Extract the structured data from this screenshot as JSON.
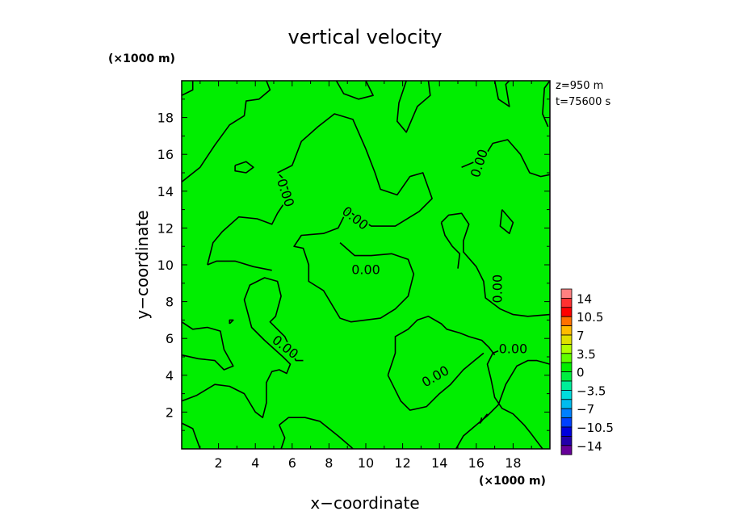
{
  "chart_data": {
    "type": "heatmap",
    "title": "vertical velocity",
    "xlabel": "x−coordinate",
    "ylabel": "y−coordinate",
    "x_unit": "(×1000 m)",
    "y_unit": "(×1000 m)",
    "xlim": [
      0,
      20
    ],
    "ylim": [
      0,
      20
    ],
    "x_ticks": [
      2,
      4,
      6,
      8,
      10,
      12,
      14,
      16,
      18
    ],
    "y_ticks": [
      2,
      4,
      6,
      8,
      10,
      12,
      14,
      16,
      18
    ],
    "x_tick_labels": [
      "2",
      "4",
      "6",
      "8",
      "10",
      "12",
      "14",
      "16",
      "18"
    ],
    "y_tick_labels": [
      "2",
      "4",
      "6",
      "8",
      "10",
      "12",
      "14",
      "16",
      "18"
    ],
    "field_color": "#00ee00",
    "annotations": [
      "z=950 m",
      "t=75600 s"
    ],
    "contour_level": 0.0,
    "contour_labels": [
      {
        "text": "0.00",
        "x": 5.6,
        "y": 13.9,
        "angle": 72
      },
      {
        "text": "0.00",
        "x": 9.4,
        "y": 12.5,
        "angle": 38
      },
      {
        "text": "0.00",
        "x": 10.0,
        "y": 9.7,
        "angle": 0
      },
      {
        "text": "0.00",
        "x": 16.2,
        "y": 15.5,
        "angle": -72
      },
      {
        "text": "0.00",
        "x": 17.2,
        "y": 8.7,
        "angle": -90
      },
      {
        "text": "0.00",
        "x": 18.0,
        "y": 5.4,
        "angle": 0
      },
      {
        "text": "0.00",
        "x": 13.8,
        "y": 3.9,
        "angle": -30
      },
      {
        "text": "0.00",
        "x": 5.6,
        "y": 5.5,
        "angle": 38
      }
    ],
    "contours": [
      [
        [
          0,
          14.5
        ],
        [
          1.0,
          15.3
        ],
        [
          1.8,
          16.5
        ],
        [
          2.6,
          17.6
        ],
        [
          3.4,
          18.1
        ],
        [
          3.5,
          18.9
        ],
        [
          4.2,
          19.0
        ],
        [
          4.8,
          19.5
        ],
        [
          4.6,
          20
        ]
      ],
      [
        [
          0,
          19.2
        ],
        [
          0.6,
          19.5
        ],
        [
          0.6,
          20
        ]
      ],
      [
        [
          8.4,
          20
        ],
        [
          8.8,
          19.3
        ],
        [
          9.6,
          19.0
        ],
        [
          10.4,
          19.2
        ],
        [
          10.0,
          20
        ]
      ],
      [
        [
          12.2,
          20
        ],
        [
          11.8,
          18.8
        ],
        [
          11.7,
          17.8
        ],
        [
          12.2,
          17.2
        ],
        [
          12.8,
          18.6
        ],
        [
          13.5,
          19.2
        ],
        [
          13.4,
          20
        ]
      ],
      [
        [
          17.0,
          20
        ],
        [
          17.2,
          19.0
        ],
        [
          17.8,
          18.6
        ],
        [
          17.6,
          19.8
        ],
        [
          17.8,
          20
        ]
      ],
      [
        [
          5.2,
          15.0
        ],
        [
          6.0,
          15.4
        ],
        [
          6.5,
          16.7
        ],
        [
          7.4,
          17.5
        ],
        [
          8.3,
          18.2
        ],
        [
          9.3,
          17.9
        ],
        [
          10.0,
          16.3
        ],
        [
          10.5,
          15.0
        ],
        [
          10.8,
          14.1
        ],
        [
          11.7,
          13.8
        ],
        [
          12.4,
          14.8
        ],
        [
          13.1,
          15.0
        ],
        [
          13.6,
          13.6
        ],
        [
          12.9,
          12.9
        ],
        [
          11.6,
          12.1
        ],
        [
          10.3,
          12.1
        ],
        [
          9.5,
          12.6
        ],
        [
          9.0,
          13.0
        ],
        [
          8.5,
          12.0
        ],
        [
          7.7,
          11.7
        ],
        [
          6.5,
          11.6
        ],
        [
          6.1,
          11.0
        ],
        [
          6.6,
          10.9
        ],
        [
          6.9,
          10.0
        ],
        [
          6.9,
          9.1
        ],
        [
          7.7,
          8.6
        ],
        [
          8.6,
          7.1
        ],
        [
          9.2,
          6.9
        ],
        [
          10.8,
          7.1
        ],
        [
          11.6,
          7.6
        ],
        [
          12.3,
          8.3
        ],
        [
          12.6,
          9.5
        ],
        [
          12.3,
          10.3
        ],
        [
          11.4,
          10.6
        ],
        [
          10.3,
          10.5
        ],
        [
          9.4,
          10.5
        ],
        [
          8.6,
          11.2
        ]
      ],
      [
        [
          0,
          5.1
        ],
        [
          0.9,
          4.9
        ],
        [
          1.8,
          4.8
        ],
        [
          2.3,
          4.3
        ],
        [
          2.8,
          4.5
        ],
        [
          2.3,
          5.4
        ],
        [
          2.1,
          6.4
        ],
        [
          1.4,
          6.6
        ],
        [
          0.6,
          6.5
        ],
        [
          0,
          6.9
        ]
      ],
      [
        [
          0,
          2.6
        ],
        [
          0.8,
          2.9
        ],
        [
          1.8,
          3.5
        ],
        [
          2.6,
          3.4
        ],
        [
          3.4,
          3.0
        ],
        [
          4.0,
          2.0
        ],
        [
          4.4,
          1.7
        ],
        [
          4.6,
          2.5
        ],
        [
          4.6,
          3.6
        ],
        [
          4.9,
          4.2
        ],
        [
          5.3,
          4.3
        ],
        [
          5.7,
          4.1
        ],
        [
          5.9,
          4.6
        ],
        [
          5.5,
          5.0
        ],
        [
          4.5,
          5.9
        ],
        [
          3.8,
          6.6
        ],
        [
          3.4,
          8.1
        ],
        [
          3.7,
          8.9
        ],
        [
          4.5,
          9.3
        ],
        [
          5.2,
          9.1
        ],
        [
          5.4,
          8.3
        ],
        [
          5.1,
          7.2
        ],
        [
          4.8,
          6.9
        ],
        [
          5.6,
          6.1
        ],
        [
          6.2,
          4.8
        ],
        [
          6.6,
          4.8
        ]
      ],
      [
        [
          1.4,
          10.0
        ],
        [
          1.7,
          11.2
        ],
        [
          2.2,
          11.8
        ],
        [
          3.1,
          12.6
        ],
        [
          4.1,
          12.5
        ],
        [
          4.9,
          12.2
        ],
        [
          5.2,
          12.8
        ],
        [
          5.6,
          13.4
        ],
        [
          5.8,
          14.0
        ],
        [
          5.6,
          14.6
        ],
        [
          5.3,
          14.9
        ]
      ],
      [
        [
          1.4,
          10.0
        ],
        [
          1.9,
          10.2
        ],
        [
          2.9,
          10.2
        ],
        [
          3.9,
          9.9
        ],
        [
          4.9,
          9.7
        ]
      ],
      [
        [
          14.1,
          12.3
        ],
        [
          14.5,
          12.7
        ],
        [
          15.2,
          12.8
        ],
        [
          15.6,
          12.2
        ],
        [
          15.3,
          11.3
        ],
        [
          15.3,
          10.7
        ],
        [
          16.0,
          9.9
        ],
        [
          16.4,
          9.1
        ],
        [
          16.5,
          8.2
        ],
        [
          17.3,
          7.6
        ],
        [
          18.0,
          7.3
        ],
        [
          18.8,
          7.2
        ],
        [
          20,
          7.3
        ]
      ],
      [
        [
          14.1,
          12.3
        ],
        [
          14.3,
          11.6
        ],
        [
          14.7,
          11.0
        ],
        [
          15.1,
          10.6
        ],
        [
          15.0,
          9.8
        ]
      ],
      [
        [
          15.2,
          15.3
        ],
        [
          16.4,
          15.8
        ],
        [
          16.9,
          16.6
        ],
        [
          17.7,
          16.8
        ],
        [
          18.4,
          16.0
        ],
        [
          18.9,
          15.0
        ],
        [
          19.5,
          14.8
        ],
        [
          20,
          14.9
        ]
      ],
      [
        [
          11.2,
          4.0
        ],
        [
          11.6,
          5.2
        ],
        [
          11.6,
          6.1
        ],
        [
          12.3,
          6.5
        ],
        [
          12.8,
          7.0
        ],
        [
          13.4,
          7.2
        ],
        [
          14.1,
          6.8
        ],
        [
          14.4,
          6.5
        ],
        [
          15.1,
          6.3
        ],
        [
          15.6,
          6.1
        ],
        [
          16.3,
          5.9
        ],
        [
          16.7,
          5.5
        ],
        [
          17.0,
          5.1
        ]
      ],
      [
        [
          11.2,
          4.0
        ],
        [
          11.9,
          2.6
        ],
        [
          12.4,
          2.1
        ],
        [
          13.3,
          2.3
        ],
        [
          14.0,
          3.0
        ],
        [
          14.6,
          3.5
        ],
        [
          15.3,
          4.3
        ],
        [
          15.9,
          4.8
        ],
        [
          16.4,
          5.2
        ]
      ],
      [
        [
          14.9,
          0
        ],
        [
          15.3,
          0.7
        ],
        [
          16.0,
          1.3
        ],
        [
          16.6,
          1.8
        ],
        [
          17.2,
          2.4
        ],
        [
          17.6,
          3.5
        ],
        [
          18.2,
          4.5
        ],
        [
          18.8,
          4.8
        ],
        [
          19.3,
          4.8
        ],
        [
          20,
          4.6
        ]
      ],
      [
        [
          19.6,
          0
        ],
        [
          19.0,
          0.8
        ],
        [
          18.6,
          1.3
        ],
        [
          18.0,
          1.9
        ],
        [
          17.4,
          2.2
        ],
        [
          17.0,
          2.8
        ],
        [
          16.8,
          3.8
        ],
        [
          16.6,
          4.6
        ],
        [
          16.9,
          5.2
        ],
        [
          17.4,
          5.4
        ]
      ],
      [
        [
          0,
          1.4
        ],
        [
          0.6,
          1.1
        ],
        [
          1.0,
          0
        ],
        [
          1.0,
          0
        ]
      ],
      [
        [
          5.3,
          1.3
        ],
        [
          5.8,
          1.7
        ],
        [
          6.7,
          1.7
        ],
        [
          7.5,
          1.5
        ],
        [
          8.5,
          0.7
        ],
        [
          9.2,
          0.1
        ],
        [
          9.3,
          0
        ]
      ],
      [
        [
          5.3,
          1.3
        ],
        [
          5.6,
          0.6
        ],
        [
          5.4,
          0
        ]
      ],
      [
        [
          16.3,
          1.7
        ],
        [
          16.2,
          1.4
        ],
        [
          16.6,
          1.9
        ]
      ],
      [
        [
          17.4,
          13.0
        ],
        [
          18.0,
          12.3
        ],
        [
          17.8,
          11.7
        ],
        [
          17.3,
          12.1
        ],
        [
          17.4,
          13.0
        ]
      ],
      [
        [
          2.9,
          15.4
        ],
        [
          3.5,
          15.6
        ],
        [
          3.9,
          15.3
        ],
        [
          3.5,
          15.0
        ],
        [
          2.9,
          15.1
        ],
        [
          2.9,
          15.4
        ]
      ],
      [
        [
          2.6,
          6.8
        ],
        [
          2.8,
          7.0
        ],
        [
          2.6,
          7.0
        ],
        [
          2.6,
          6.8
        ]
      ],
      [
        [
          19.9,
          17.5
        ],
        [
          19.6,
          18.2
        ],
        [
          19.7,
          19.6
        ],
        [
          20,
          20
        ]
      ]
    ],
    "colorbar": {
      "labels": [
        "14",
        "10.5",
        "7",
        "3.5",
        "0",
        "−3.5",
        "−7",
        "−10.5",
        "−14"
      ],
      "colors": [
        "#ff8080",
        "#ff3030",
        "#ff0000",
        "#ff7000",
        "#ffbb00",
        "#e0e000",
        "#b0ff00",
        "#60ff00",
        "#00ee00",
        "#00ee40",
        "#00ee99",
        "#00dddd",
        "#00bbee",
        "#0080ff",
        "#0040ff",
        "#0000dd",
        "#2200aa",
        "#660099"
      ]
    }
  }
}
